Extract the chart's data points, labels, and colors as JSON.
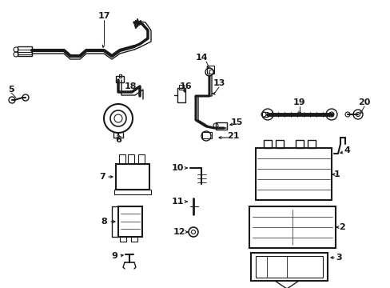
{
  "bg_color": "#ffffff",
  "line_color": "#1a1a1a",
  "figsize": [
    4.89,
    3.6
  ],
  "dpi": 100,
  "xlim": [
    0,
    489
  ],
  "ylim": [
    360,
    0
  ]
}
